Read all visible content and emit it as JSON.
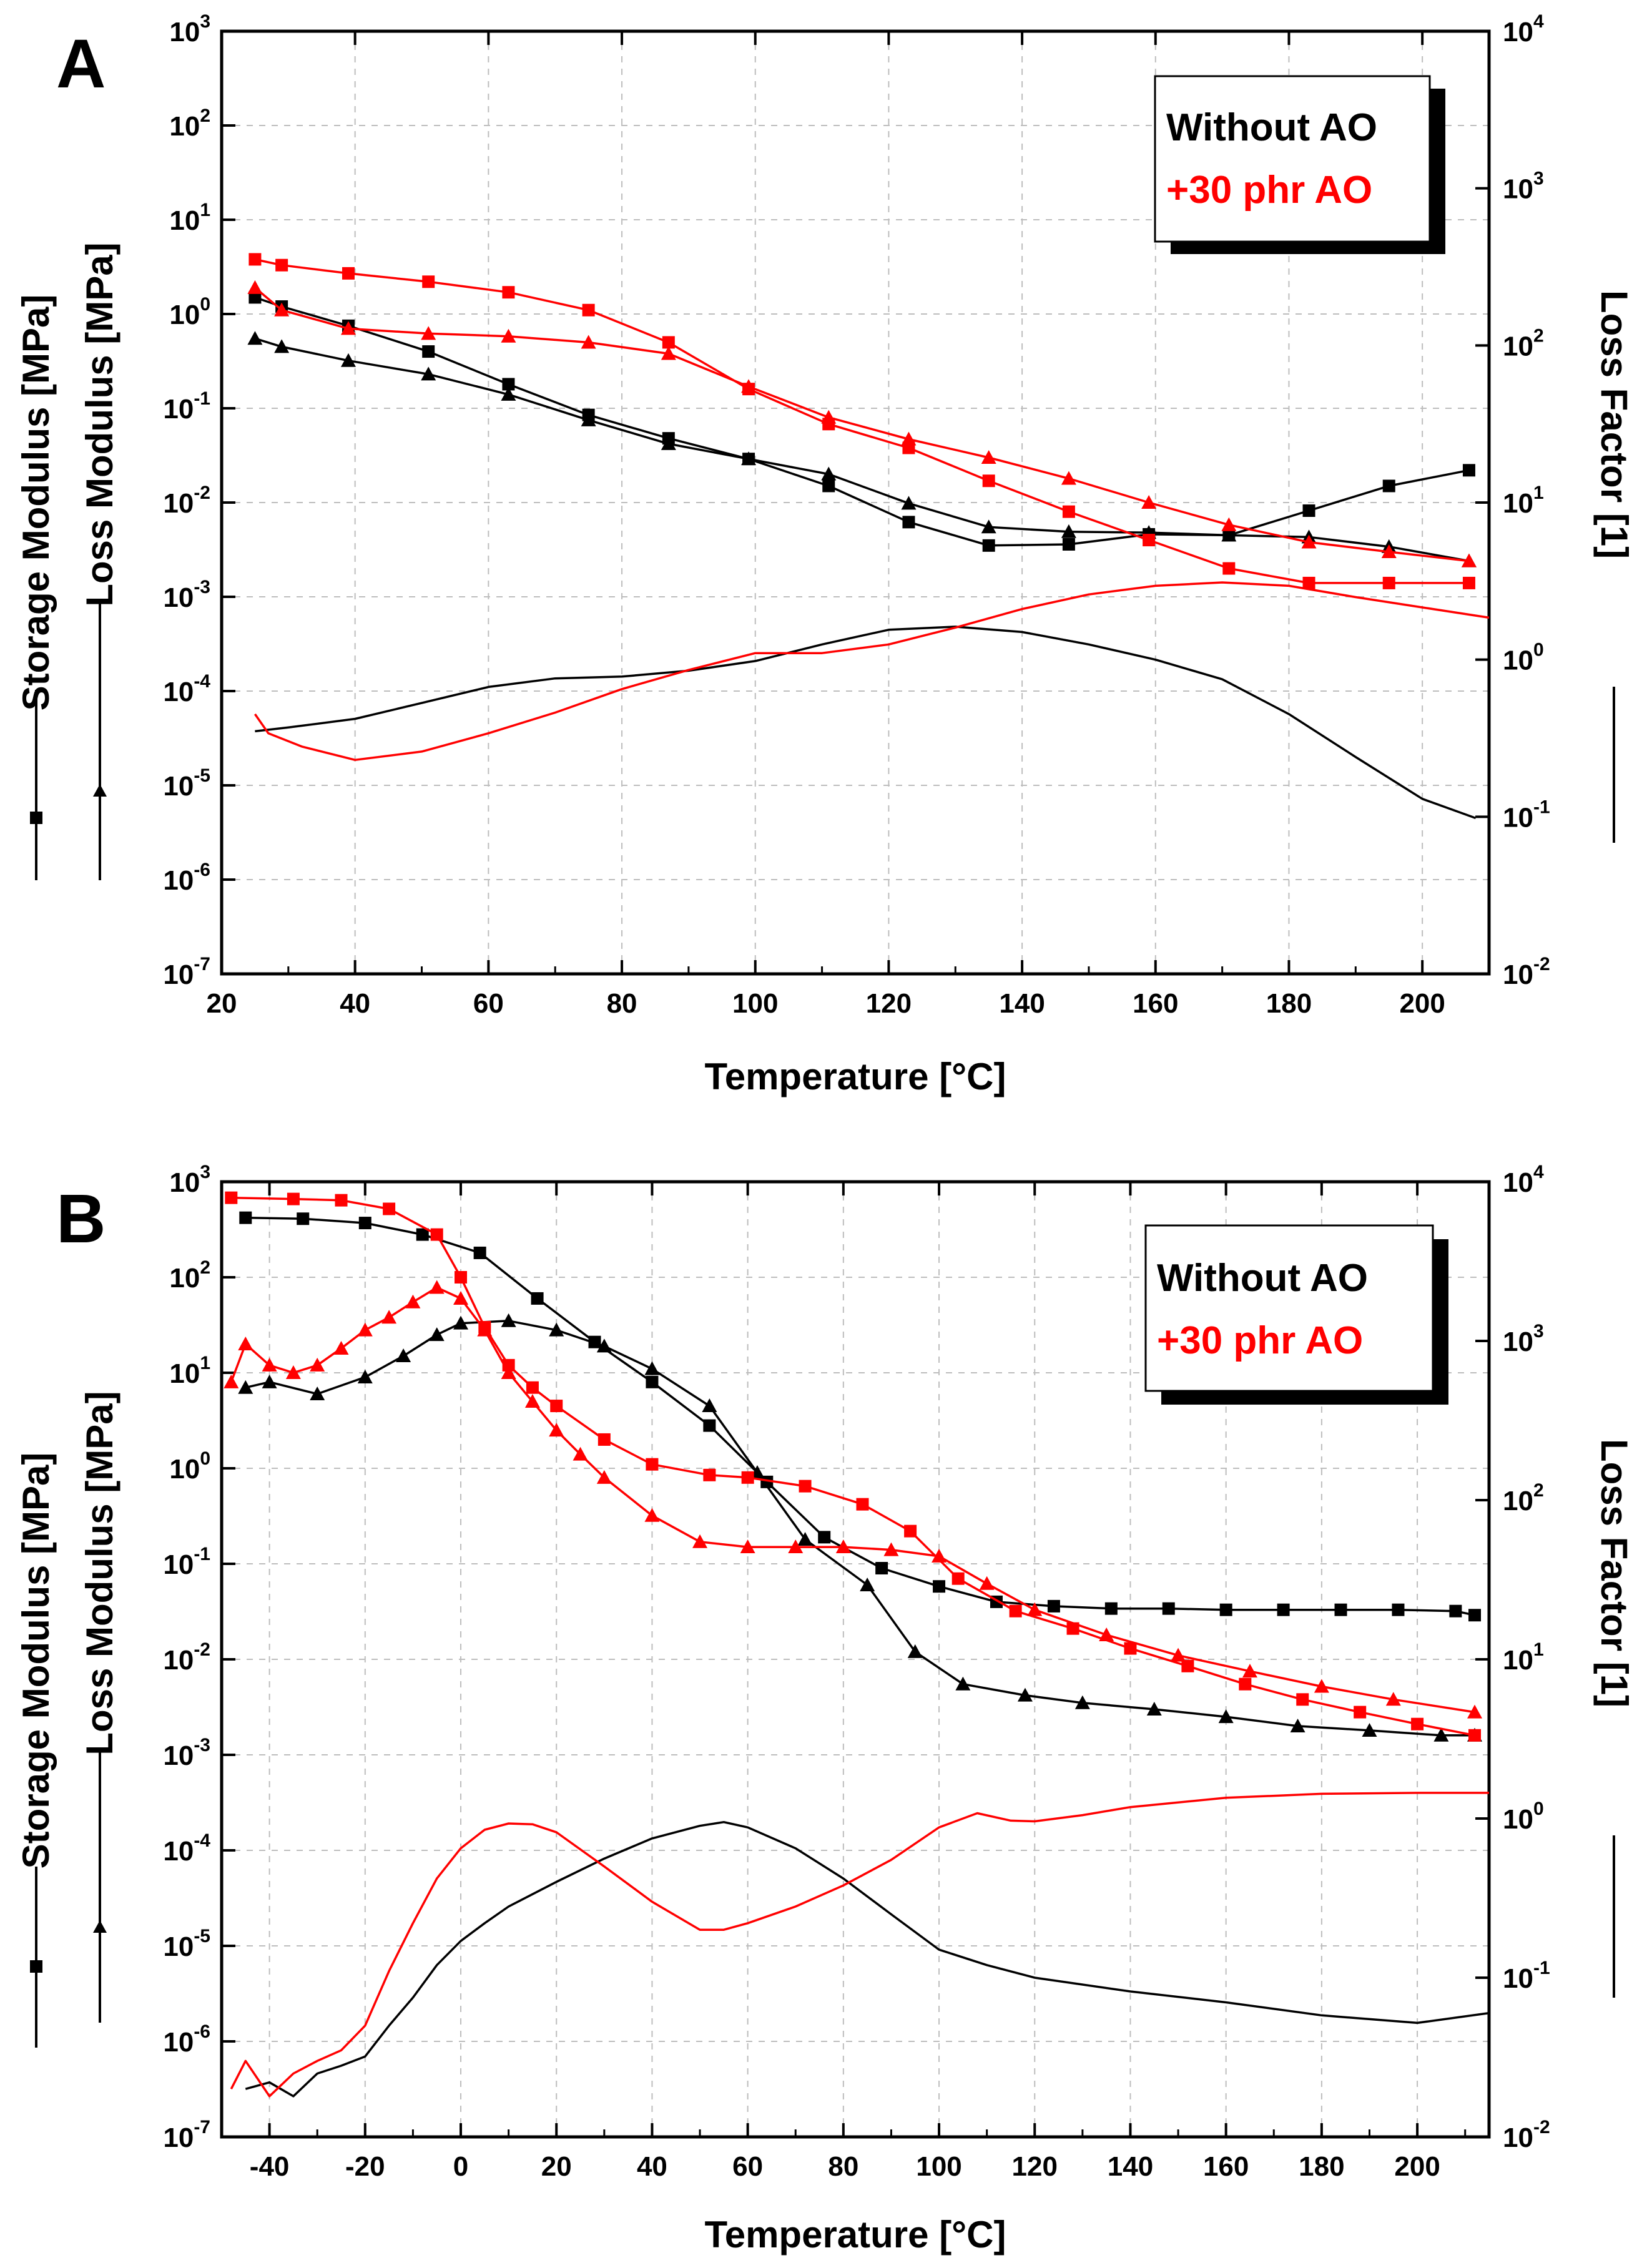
{
  "colors": {
    "without": "#000000",
    "ao": "#ff0000",
    "grid": "#bdbdbd"
  },
  "legend": {
    "without_label": "Without AO",
    "ao_label": "+30 phr AO"
  },
  "axes": {
    "xlabel": "Temperature [°C]",
    "ylabel_storage": "Storage Modulus [MPa]",
    "ylabel_loss": "Loss Modulus [MPa]",
    "ylabel_right": "Loss Factor [1]"
  },
  "chart_data": [
    {
      "panel": "A",
      "type": "line",
      "x_range": [
        20,
        210
      ],
      "x_ticks": [
        20,
        40,
        60,
        80,
        100,
        120,
        140,
        160,
        180,
        200
      ],
      "y_left_exp_range": [
        -7,
        3
      ],
      "y_right_exp_range": [
        -2,
        4
      ],
      "series": [
        {
          "name": "Without AO - Storage Modulus",
          "group": "without",
          "axis": "left",
          "marker": "square",
          "x": [
            25,
            29,
            39,
            51,
            63,
            75,
            87,
            99,
            111,
            123,
            135,
            147,
            159,
            171,
            183,
            195,
            207
          ],
          "y": [
            1.5,
            1.2,
            0.75,
            0.4,
            0.18,
            0.085,
            0.048,
            0.029,
            0.015,
            0.0062,
            0.0035,
            0.0036,
            0.0046,
            0.0045,
            0.0082,
            0.015,
            0.022
          ]
        },
        {
          "name": "Without AO - Loss Modulus",
          "group": "without",
          "axis": "left",
          "marker": "triangle",
          "x": [
            25,
            29,
            39,
            51,
            63,
            75,
            87,
            99,
            111,
            123,
            135,
            147,
            159,
            171,
            183,
            195,
            207
          ],
          "y": [
            0.55,
            0.45,
            0.32,
            0.23,
            0.14,
            0.075,
            0.042,
            0.029,
            0.02,
            0.0098,
            0.0055,
            0.0049,
            0.0048,
            0.0045,
            0.0043,
            0.0034,
            0.0024
          ]
        },
        {
          "name": "+30 phr AO - Storage Modulus",
          "group": "ao",
          "axis": "left",
          "marker": "square",
          "x": [
            25,
            29,
            39,
            51,
            63,
            75,
            87,
            99,
            111,
            123,
            135,
            147,
            159,
            171,
            183,
            195,
            207
          ],
          "y": [
            3.8,
            3.3,
            2.7,
            2.2,
            1.7,
            1.1,
            0.5,
            0.16,
            0.068,
            0.038,
            0.017,
            0.008,
            0.004,
            0.002,
            0.0014,
            0.0014,
            0.0014
          ]
        },
        {
          "name": "+30 phr AO - Loss Modulus",
          "group": "ao",
          "axis": "left",
          "marker": "triangle",
          "x": [
            25,
            29,
            39,
            51,
            63,
            75,
            87,
            99,
            111,
            123,
            135,
            147,
            159,
            171,
            183,
            195,
            207
          ],
          "y": [
            1.9,
            1.1,
            0.7,
            0.62,
            0.58,
            0.5,
            0.38,
            0.17,
            0.08,
            0.047,
            0.03,
            0.018,
            0.01,
            0.0058,
            0.0038,
            0.003,
            0.0024
          ]
        },
        {
          "name": "Without AO - Loss Factor",
          "group": "without",
          "axis": "right",
          "marker": "none",
          "x": [
            25,
            30,
            40,
            50,
            60,
            70,
            80,
            90,
            100,
            110,
            120,
            130,
            140,
            150,
            160,
            170,
            180,
            190,
            200,
            208
          ],
          "y": [
            0.35,
            0.37,
            0.42,
            0.53,
            0.67,
            0.76,
            0.78,
            0.85,
            0.98,
            1.25,
            1.55,
            1.62,
            1.5,
            1.25,
            1.0,
            0.75,
            0.45,
            0.24,
            0.13,
            0.098
          ]
        },
        {
          "name": "+30 phr AO - Loss Factor",
          "group": "ao",
          "axis": "right",
          "marker": "none",
          "x": [
            25,
            27,
            32,
            40,
            50,
            60,
            70,
            80,
            90,
            100,
            110,
            120,
            130,
            140,
            150,
            160,
            170,
            180,
            190,
            200,
            210
          ],
          "y": [
            0.45,
            0.34,
            0.28,
            0.23,
            0.26,
            0.34,
            0.46,
            0.65,
            0.86,
            1.1,
            1.1,
            1.25,
            1.6,
            2.1,
            2.6,
            2.95,
            3.1,
            2.95,
            2.5,
            2.15,
            1.85
          ]
        }
      ]
    },
    {
      "panel": "B",
      "type": "line",
      "x_range": [
        -50,
        215
      ],
      "x_ticks": [
        -40,
        -20,
        0,
        20,
        40,
        60,
        80,
        100,
        120,
        140,
        160,
        180,
        200
      ],
      "y_left_exp_range": [
        -7,
        3
      ],
      "y_right_exp_range": [
        -2,
        4
      ],
      "series": [
        {
          "name": "Without AO - Storage Modulus",
          "group": "without",
          "axis": "left",
          "marker": "square",
          "x": [
            -45,
            -33,
            -20,
            -8,
            4,
            16,
            28,
            40,
            52,
            64,
            76,
            88,
            100,
            112,
            124,
            136,
            148,
            160,
            172,
            184,
            196,
            208,
            212
          ],
          "y": [
            420,
            410,
            370,
            280,
            180,
            60,
            21,
            8,
            2.8,
            0.72,
            0.19,
            0.09,
            0.058,
            0.04,
            0.036,
            0.034,
            0.034,
            0.033,
            0.033,
            0.033,
            0.033,
            0.032,
            0.029
          ]
        },
        {
          "name": "Without AO - Loss Modulus",
          "group": "without",
          "axis": "left",
          "marker": "triangle",
          "x": [
            -45,
            -40,
            -30,
            -20,
            -12,
            -5,
            0,
            10,
            20,
            30,
            40,
            52,
            62,
            72,
            85,
            95,
            105,
            118,
            130,
            145,
            160,
            175,
            190,
            205,
            212
          ],
          "y": [
            7,
            8,
            6,
            9,
            15,
            25,
            33,
            35,
            28,
            19,
            11,
            4.5,
            0.9,
            0.18,
            0.06,
            0.012,
            0.0055,
            0.0042,
            0.0035,
            0.003,
            0.0025,
            0.002,
            0.0018,
            0.0016,
            0.0016
          ]
        },
        {
          "name": "+30 phr AO - Storage Modulus",
          "group": "ao",
          "axis": "left",
          "marker": "square",
          "x": [
            -48,
            -35,
            -25,
            -15,
            -5,
            0,
            5,
            10,
            15,
            20,
            30,
            40,
            52,
            60,
            72,
            84,
            94,
            104,
            116,
            128,
            140,
            152,
            164,
            176,
            188,
            200,
            212
          ],
          "y": [
            680,
            660,
            640,
            520,
            280,
            100,
            30,
            12,
            7,
            4.5,
            2.0,
            1.1,
            0.85,
            0.8,
            0.65,
            0.42,
            0.22,
            0.07,
            0.032,
            0.021,
            0.013,
            0.0085,
            0.0055,
            0.0038,
            0.0028,
            0.0021,
            0.0016
          ]
        },
        {
          "name": "+30 phr AO - Loss Modulus",
          "group": "ao",
          "axis": "left",
          "marker": "triangle",
          "x": [
            -48,
            -45,
            -40,
            -35,
            -30,
            -25,
            -20,
            -15,
            -10,
            -5,
            0,
            5,
            10,
            15,
            20,
            25,
            30,
            40,
            50,
            60,
            70,
            80,
            90,
            100,
            110,
            120,
            135,
            150,
            165,
            180,
            195,
            212
          ],
          "y": [
            8,
            20,
            12,
            10,
            12,
            18,
            28,
            38,
            55,
            78,
            60,
            28,
            10,
            5,
            2.5,
            1.4,
            0.8,
            0.32,
            0.17,
            0.15,
            0.15,
            0.15,
            0.14,
            0.12,
            0.062,
            0.033,
            0.018,
            0.011,
            0.0075,
            0.0052,
            0.0038,
            0.0028
          ]
        },
        {
          "name": "Without AO - Loss Factor",
          "group": "without",
          "axis": "right",
          "marker": "none",
          "x": [
            -45,
            -40,
            -35,
            -30,
            -25,
            -20,
            -15,
            -10,
            -5,
            0,
            5,
            10,
            20,
            30,
            40,
            50,
            55,
            60,
            70,
            80,
            90,
            100,
            110,
            120,
            140,
            160,
            180,
            200,
            215
          ],
          "y": [
            0.02,
            0.022,
            0.018,
            0.025,
            0.028,
            0.032,
            0.05,
            0.075,
            0.12,
            0.17,
            0.22,
            0.28,
            0.4,
            0.56,
            0.75,
            0.9,
            0.95,
            0.88,
            0.65,
            0.42,
            0.25,
            0.15,
            0.12,
            0.1,
            0.082,
            0.07,
            0.058,
            0.052,
            0.06
          ]
        },
        {
          "name": "+30 phr AO - Loss Factor",
          "group": "ao",
          "axis": "right",
          "marker": "none",
          "x": [
            -48,
            -45,
            -40,
            -35,
            -30,
            -25,
            -20,
            -15,
            -10,
            -5,
            0,
            5,
            10,
            15,
            20,
            30,
            40,
            50,
            55,
            60,
            70,
            80,
            90,
            100,
            108,
            115,
            120,
            130,
            140,
            160,
            180,
            200,
            215
          ],
          "y": [
            0.02,
            0.03,
            0.018,
            0.025,
            0.03,
            0.035,
            0.05,
            0.11,
            0.22,
            0.42,
            0.65,
            0.85,
            0.93,
            0.92,
            0.82,
            0.5,
            0.3,
            0.2,
            0.2,
            0.22,
            0.28,
            0.38,
            0.55,
            0.88,
            1.08,
            0.97,
            0.96,
            1.05,
            1.18,
            1.35,
            1.43,
            1.45,
            1.45
          ]
        }
      ]
    }
  ]
}
